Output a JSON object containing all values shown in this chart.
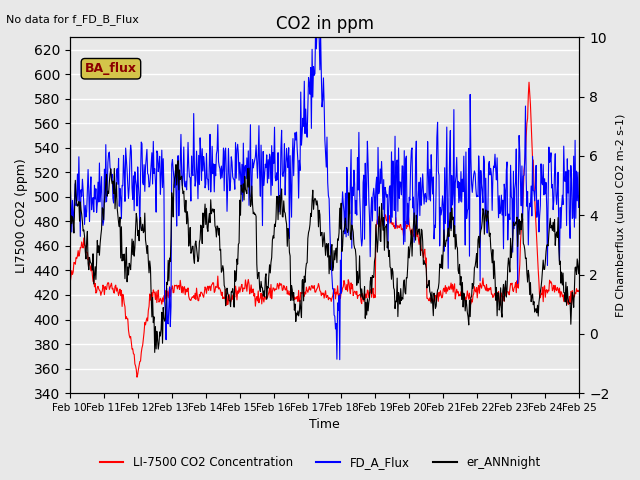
{
  "title": "CO2 in ppm",
  "top_left_text": "No data for f_FD_B_Flux",
  "xlabel": "Time",
  "ylabel_left": "LI7500 CO2 (ppm)",
  "ylabel_right": "FD Chamberflux (μmol CO2 m-2 s-1)",
  "ylabel_right_display": "FD Chamberflux (umol CO2 m-2 s-1)",
  "ylim_left": [
    340,
    630
  ],
  "ylim_right": [
    -2,
    10
  ],
  "yticks_left": [
    340,
    360,
    380,
    400,
    420,
    440,
    460,
    480,
    500,
    520,
    540,
    560,
    580,
    600,
    620
  ],
  "yticks_right": [
    -2,
    0,
    2,
    4,
    6,
    8,
    10
  ],
  "xtick_labels": [
    "Feb 10",
    "Feb 11",
    "Feb 12",
    "Feb 13",
    "Feb 14",
    "Feb 15",
    "Feb 16",
    "Feb 17",
    "Feb 18",
    "Feb 19",
    "Feb 20",
    "Feb 21",
    "Feb 22",
    "Feb 23",
    "Feb 24",
    "Feb 25"
  ],
  "legend_entries": [
    "LI-7500 CO2 Concentration",
    "FD_A_Flux",
    "er_ANNnight"
  ],
  "legend_colors": [
    "red",
    "blue",
    "black"
  ],
  "box_label": "BA_flux",
  "box_color": "#d4c44a",
  "background_color": "#e8e8e8",
  "line_red_color": "red",
  "line_blue_color": "blue",
  "line_black_color": "black"
}
